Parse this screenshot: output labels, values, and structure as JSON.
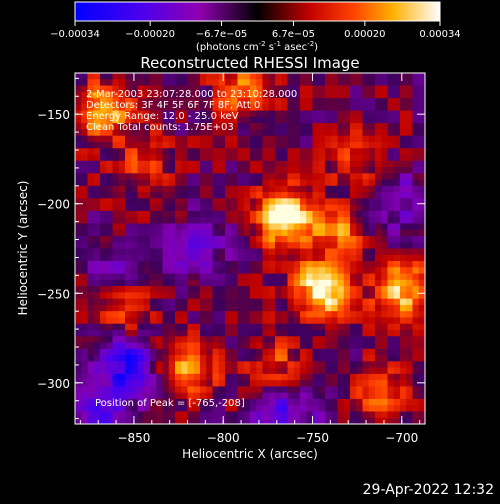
{
  "colorbar": {
    "tick_labels": [
      "-0.00034",
      "-0.00020",
      "-6.7e-05",
      "6.7e-05",
      "0.00020",
      "0.00034"
    ],
    "tick_values": [
      -0.00034,
      -0.0002,
      -6.7e-05,
      6.7e-05,
      0.0002,
      0.00034
    ],
    "range": [
      -0.00034,
      0.00034
    ],
    "unit_label": "(photons cm",
    "unit_sup1": "-2",
    "unit_mid": " s",
    "unit_sup2": "-1",
    "unit_end": " asec",
    "unit_sup3": "-2",
    "unit_close": ")"
  },
  "chart_data": {
    "type": "heatmap",
    "title": "Reconstructed RHESSI Image",
    "xlabel": "Heliocentric X (arcsec)",
    "ylabel": "Heliocentric Y (arcsec)",
    "xlim": [
      -883,
      -687
    ],
    "ylim": [
      -323,
      -127
    ],
    "xticks": [
      -850,
      -800,
      -750,
      -700
    ],
    "yticks": [
      -150,
      -200,
      -250,
      -300
    ],
    "xtick_labels": [
      "-850",
      "-800",
      "-750",
      "-700"
    ],
    "ytick_labels": [
      "-150",
      "-200",
      "-250",
      "-300"
    ],
    "colormap": "red-temperature (blue = negative, white = positive)",
    "annotations": [
      "2-Mar-2003 23:07:28.000 to 23:10:28.000",
      "Detectors: 3F 4F 5F 6F 7F 8F, Att 0",
      "Energy Range: 12.0 - 25.0 keV",
      "Clean    Total counts: 1.75E+03"
    ],
    "peak_label": "Position of Peak = [-765,-208]",
    "peak": [
      -765,
      -208
    ],
    "hot_spots": [
      {
        "x": -765,
        "y": -208,
        "level": 1.0
      },
      {
        "x": -745,
        "y": -248,
        "level": 0.95
      },
      {
        "x": -700,
        "y": -248,
        "level": 0.8
      },
      {
        "x": -868,
        "y": -148,
        "level": 0.75
      },
      {
        "x": -820,
        "y": -292,
        "level": 0.7
      },
      {
        "x": -735,
        "y": -215,
        "level": 0.55
      },
      {
        "x": -790,
        "y": -138,
        "level": 0.5
      },
      {
        "x": -855,
        "y": -262,
        "level": 0.45
      },
      {
        "x": -710,
        "y": -305,
        "level": 0.45
      },
      {
        "x": -845,
        "y": -178,
        "level": 0.4
      },
      {
        "x": -770,
        "y": -290,
        "level": 0.4
      },
      {
        "x": -725,
        "y": -175,
        "level": 0.35
      }
    ],
    "cold_spots": [
      {
        "x": -855,
        "y": -290,
        "level": 0.8
      },
      {
        "x": -870,
        "y": -320,
        "level": 0.6
      },
      {
        "x": -765,
        "y": -318,
        "level": 0.6
      },
      {
        "x": -815,
        "y": -225,
        "level": 0.4
      },
      {
        "x": -700,
        "y": -200,
        "level": 0.4
      },
      {
        "x": -860,
        "y": -235,
        "level": 0.3
      }
    ]
  },
  "timestamp": "29-Apr-2022 12:32"
}
